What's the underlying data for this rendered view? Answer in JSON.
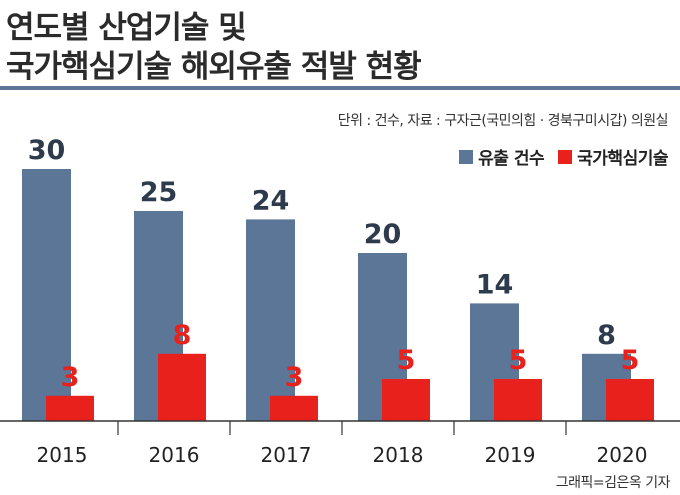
{
  "header": {
    "title_line1": "연도별 산업기술 및",
    "title_line2": "국가핵심기술 해외유출 적발 현황"
  },
  "source_note": "단위 : 건수, 자료 : 구자근(국민의힘 · 경북구미시갑) 의원실",
  "credit": "그래픽=김은옥 기자",
  "colors": {
    "series1": "#5b7697",
    "series2": "#e8211c",
    "value1_text": "#2d3b4c",
    "value2_text": "#e8211c",
    "axis": "#333333"
  },
  "chart_data": {
    "type": "bar",
    "title": "연도별 산업기술 및 국가핵심기술 해외유출 적발 현황",
    "xlabel": "",
    "ylabel": "",
    "unit": "건수",
    "categories": [
      "2015",
      "2016",
      "2017",
      "2018",
      "2019",
      "2020"
    ],
    "series": [
      {
        "name": "유출 건수",
        "values": [
          30,
          25,
          24,
          20,
          14,
          8
        ]
      },
      {
        "name": "국가핵심기술",
        "values": [
          3,
          8,
          3,
          5,
          5,
          5
        ]
      }
    ],
    "ylim": [
      0,
      30
    ],
    "legend": "top-right",
    "grid": false
  }
}
